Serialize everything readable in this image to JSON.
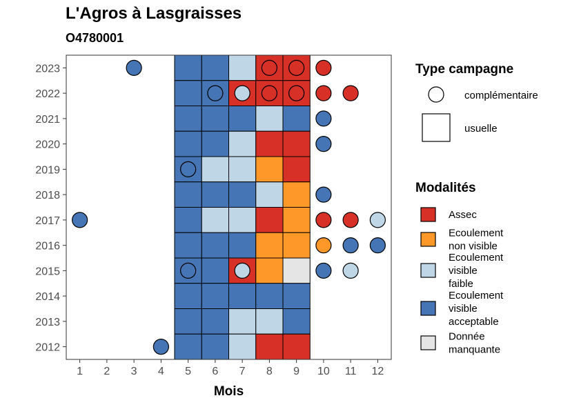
{
  "chart_data": {
    "type": "heatmap",
    "title": "L'Agros à Lasgraisses",
    "subtitle": "O4780001",
    "xlabel": "Mois",
    "ylabel": "",
    "x_ticks": [
      1,
      2,
      3,
      4,
      5,
      6,
      7,
      8,
      9,
      10,
      11,
      12
    ],
    "y_ticks": [
      2012,
      2013,
      2014,
      2015,
      2016,
      2017,
      2018,
      2019,
      2020,
      2021,
      2022,
      2023
    ],
    "xlim": [
      0.5,
      12.5
    ],
    "ylim": [
      2011.5,
      2023.5
    ],
    "grid": false,
    "legend_position": "right",
    "colors": {
      "Assec": "#d73027",
      "Ecoulement non visible": "#fe9929",
      "Ecoulement visible faible": "#bfd6e6",
      "Ecoulement visible acceptable": "#4575b4",
      "Donnée manquante": "#e5e5e5"
    },
    "legend_campaign": {
      "title": "Type campagne",
      "items": [
        "complémentaire",
        "usuelle"
      ]
    },
    "legend_modalites": {
      "title": "Modalités",
      "items": [
        {
          "key": "Assec",
          "lines": [
            "Assec"
          ]
        },
        {
          "key": "Ecoulement non visible",
          "lines": [
            "Ecoulement",
            "non visible"
          ]
        },
        {
          "key": "Ecoulement visible faible",
          "lines": [
            "Ecoulement",
            "visible",
            "faible"
          ]
        },
        {
          "key": "Ecoulement visible acceptable",
          "lines": [
            "Ecoulement",
            "visible",
            "acceptable"
          ]
        },
        {
          "key": "Donnée manquante",
          "lines": [
            "Donnée",
            "manquante"
          ]
        }
      ]
    },
    "usuelle": [
      {
        "year": 2023,
        "values": [
          "Ecoulement visible acceptable",
          "Ecoulement visible acceptable",
          "Ecoulement visible faible",
          "Assec",
          "Assec"
        ]
      },
      {
        "year": 2022,
        "values": [
          "Ecoulement visible acceptable",
          "Ecoulement visible acceptable",
          "Assec",
          "Assec",
          "Assec"
        ]
      },
      {
        "year": 2021,
        "values": [
          "Ecoulement visible acceptable",
          "Ecoulement visible acceptable",
          "Ecoulement visible acceptable",
          "Ecoulement visible faible",
          "Ecoulement visible acceptable"
        ]
      },
      {
        "year": 2020,
        "values": [
          "Ecoulement visible acceptable",
          "Ecoulement visible acceptable",
          "Ecoulement visible faible",
          "Assec",
          "Assec"
        ]
      },
      {
        "year": 2019,
        "values": [
          "Ecoulement visible acceptable",
          "Ecoulement visible faible",
          "Ecoulement visible faible",
          "Ecoulement non visible",
          "Assec"
        ]
      },
      {
        "year": 2018,
        "values": [
          "Ecoulement visible acceptable",
          "Ecoulement visible acceptable",
          "Ecoulement visible acceptable",
          "Ecoulement visible faible",
          "Ecoulement non visible"
        ]
      },
      {
        "year": 2017,
        "values": [
          "Ecoulement visible acceptable",
          "Ecoulement visible faible",
          "Ecoulement visible faible",
          "Assec",
          "Ecoulement non visible"
        ]
      },
      {
        "year": 2016,
        "values": [
          "Ecoulement visible acceptable",
          "Ecoulement visible acceptable",
          "Ecoulement visible acceptable",
          "Ecoulement non visible",
          "Ecoulement non visible"
        ]
      },
      {
        "year": 2015,
        "values": [
          "Ecoulement visible acceptable",
          "Ecoulement visible acceptable",
          "Assec",
          "Ecoulement non visible",
          "Donnée manquante"
        ]
      },
      {
        "year": 2014,
        "values": [
          "Ecoulement visible acceptable",
          "Ecoulement visible acceptable",
          "Ecoulement visible acceptable",
          "Ecoulement visible acceptable",
          "Ecoulement visible acceptable"
        ]
      },
      {
        "year": 2013,
        "values": [
          "Ecoulement visible acceptable",
          "Ecoulement visible acceptable",
          "Ecoulement visible faible",
          "Ecoulement visible faible",
          "Ecoulement visible acceptable"
        ]
      },
      {
        "year": 2012,
        "values": [
          "Ecoulement visible acceptable",
          "Ecoulement visible acceptable",
          "Ecoulement visible faible",
          "Assec",
          "Assec"
        ]
      }
    ],
    "usuelle_months": [
      5,
      6,
      7,
      8,
      9
    ],
    "complementaire": [
      {
        "year": 2023,
        "month": 3,
        "value": "Ecoulement visible acceptable"
      },
      {
        "year": 2023,
        "month": 8,
        "value": "Assec"
      },
      {
        "year": 2023,
        "month": 9,
        "value": "Assec"
      },
      {
        "year": 2023,
        "month": 10,
        "value": "Assec"
      },
      {
        "year": 2022,
        "month": 6,
        "value": "Ecoulement visible acceptable"
      },
      {
        "year": 2022,
        "month": 7,
        "value": "Ecoulement visible faible"
      },
      {
        "year": 2022,
        "month": 8,
        "value": "Assec"
      },
      {
        "year": 2022,
        "month": 9,
        "value": "Assec"
      },
      {
        "year": 2022,
        "month": 10,
        "value": "Assec"
      },
      {
        "year": 2022,
        "month": 11,
        "value": "Assec"
      },
      {
        "year": 2021,
        "month": 10,
        "value": "Ecoulement visible acceptable"
      },
      {
        "year": 2020,
        "month": 10,
        "value": "Ecoulement visible acceptable"
      },
      {
        "year": 2019,
        "month": 5,
        "value": "Ecoulement visible acceptable"
      },
      {
        "year": 2018,
        "month": 10,
        "value": "Ecoulement visible acceptable"
      },
      {
        "year": 2017,
        "month": 1,
        "value": "Ecoulement visible acceptable"
      },
      {
        "year": 2017,
        "month": 10,
        "value": "Assec"
      },
      {
        "year": 2017,
        "month": 11,
        "value": "Assec"
      },
      {
        "year": 2017,
        "month": 12,
        "value": "Ecoulement visible faible"
      },
      {
        "year": 2016,
        "month": 10,
        "value": "Ecoulement non visible"
      },
      {
        "year": 2016,
        "month": 11,
        "value": "Ecoulement visible acceptable"
      },
      {
        "year": 2016,
        "month": 12,
        "value": "Ecoulement visible acceptable"
      },
      {
        "year": 2015,
        "month": 5,
        "value": "Ecoulement visible acceptable"
      },
      {
        "year": 2015,
        "month": 7,
        "value": "Ecoulement visible faible"
      },
      {
        "year": 2015,
        "month": 10,
        "value": "Ecoulement visible acceptable"
      },
      {
        "year": 2015,
        "month": 11,
        "value": "Ecoulement visible faible"
      },
      {
        "year": 2012,
        "month": 4,
        "value": "Ecoulement visible acceptable"
      }
    ]
  }
}
